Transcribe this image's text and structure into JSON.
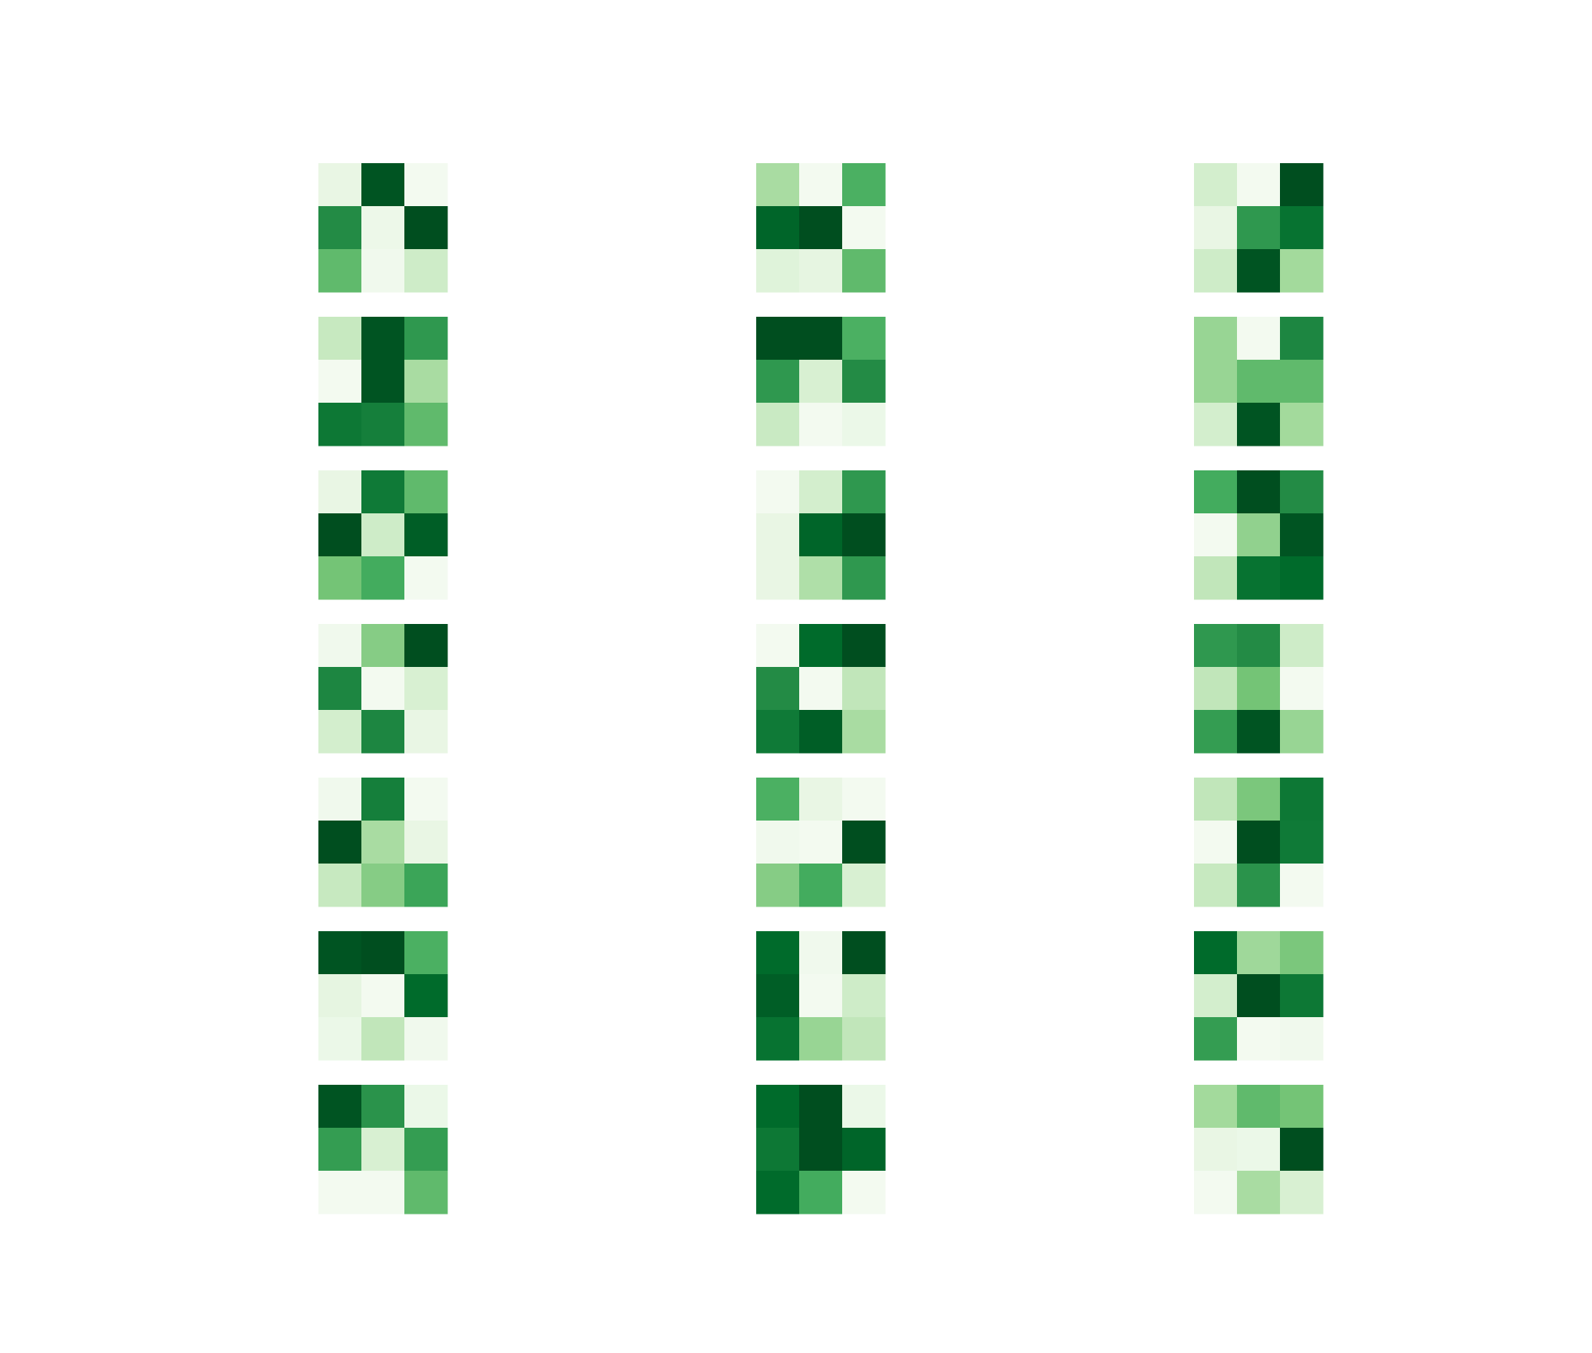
{
  "chart_data": {
    "type": "heatmap",
    "layout": {
      "rows": 7,
      "cols": 3
    },
    "colormap": "Greens",
    "value_range": [
      0,
      1
    ],
    "axes_visible": false,
    "panels": [
      {
        "row": 0,
        "col": 0,
        "values": [
          [
            0.1,
            0.95,
            0.03
          ],
          [
            0.75,
            0.07,
            0.97
          ],
          [
            0.55,
            0.05,
            0.22
          ]
        ]
      },
      {
        "row": 0,
        "col": 1,
        "values": [
          [
            0.35,
            0.03,
            0.6
          ],
          [
            0.9,
            0.97,
            0.03
          ],
          [
            0.15,
            0.12,
            0.55
          ]
        ]
      },
      {
        "row": 0,
        "col": 2,
        "values": [
          [
            0.2,
            0.03,
            0.97
          ],
          [
            0.1,
            0.7,
            0.85
          ],
          [
            0.22,
            0.95,
            0.37
          ]
        ]
      },
      {
        "row": 1,
        "col": 0,
        "values": [
          [
            0.25,
            0.95,
            0.7
          ],
          [
            0.03,
            0.95,
            0.35
          ],
          [
            0.83,
            0.8,
            0.55
          ]
        ]
      },
      {
        "row": 1,
        "col": 1,
        "values": [
          [
            0.97,
            0.97,
            0.6
          ],
          [
            0.7,
            0.18,
            0.75
          ],
          [
            0.24,
            0.03,
            0.08
          ]
        ]
      },
      {
        "row": 1,
        "col": 2,
        "values": [
          [
            0.4,
            0.03,
            0.77
          ],
          [
            0.4,
            0.55,
            0.55
          ],
          [
            0.2,
            0.95,
            0.37
          ]
        ]
      },
      {
        "row": 2,
        "col": 0,
        "values": [
          [
            0.1,
            0.82,
            0.55
          ],
          [
            0.97,
            0.22,
            0.92
          ],
          [
            0.5,
            0.62,
            0.03
          ]
        ]
      },
      {
        "row": 2,
        "col": 1,
        "values": [
          [
            0.03,
            0.2,
            0.7
          ],
          [
            0.1,
            0.9,
            0.97
          ],
          [
            0.1,
            0.33,
            0.7
          ]
        ]
      },
      {
        "row": 2,
        "col": 2,
        "values": [
          [
            0.62,
            0.97,
            0.75
          ],
          [
            0.03,
            0.42,
            0.95
          ],
          [
            0.27,
            0.85,
            0.88
          ]
        ]
      },
      {
        "row": 3,
        "col": 0,
        "values": [
          [
            0.05,
            0.45,
            0.97
          ],
          [
            0.77,
            0.03,
            0.18
          ],
          [
            0.2,
            0.77,
            0.1
          ]
        ]
      },
      {
        "row": 3,
        "col": 1,
        "values": [
          [
            0.03,
            0.88,
            0.97
          ],
          [
            0.75,
            0.03,
            0.27
          ],
          [
            0.82,
            0.92,
            0.35
          ]
        ]
      },
      {
        "row": 3,
        "col": 2,
        "values": [
          [
            0.7,
            0.75,
            0.22
          ],
          [
            0.27,
            0.5,
            0.03
          ],
          [
            0.68,
            0.95,
            0.4
          ]
        ]
      },
      {
        "row": 4,
        "col": 0,
        "values": [
          [
            0.05,
            0.8,
            0.03
          ],
          [
            0.97,
            0.35,
            0.1
          ],
          [
            0.25,
            0.45,
            0.65
          ]
        ]
      },
      {
        "row": 4,
        "col": 1,
        "values": [
          [
            0.6,
            0.1,
            0.03
          ],
          [
            0.05,
            0.03,
            0.97
          ],
          [
            0.45,
            0.62,
            0.18
          ]
        ]
      },
      {
        "row": 4,
        "col": 2,
        "values": [
          [
            0.27,
            0.48,
            0.83
          ],
          [
            0.03,
            0.97,
            0.82
          ],
          [
            0.25,
            0.72,
            0.03
          ]
        ]
      },
      {
        "row": 5,
        "col": 0,
        "values": [
          [
            0.95,
            0.97,
            0.6
          ],
          [
            0.12,
            0.03,
            0.88
          ],
          [
            0.08,
            0.27,
            0.05
          ]
        ]
      },
      {
        "row": 5,
        "col": 1,
        "values": [
          [
            0.88,
            0.05,
            0.97
          ],
          [
            0.92,
            0.03,
            0.22
          ],
          [
            0.85,
            0.4,
            0.27
          ]
        ]
      },
      {
        "row": 5,
        "col": 2,
        "values": [
          [
            0.88,
            0.38,
            0.48
          ],
          [
            0.2,
            0.97,
            0.83
          ],
          [
            0.68,
            0.03,
            0.05
          ]
        ]
      },
      {
        "row": 6,
        "col": 0,
        "values": [
          [
            0.95,
            0.72,
            0.08
          ],
          [
            0.68,
            0.18,
            0.68
          ],
          [
            0.03,
            0.03,
            0.55
          ]
        ]
      },
      {
        "row": 6,
        "col": 1,
        "values": [
          [
            0.88,
            0.97,
            0.08
          ],
          [
            0.83,
            0.97,
            0.9
          ],
          [
            0.88,
            0.62,
            0.03
          ]
        ]
      },
      {
        "row": 6,
        "col": 2,
        "values": [
          [
            0.37,
            0.55,
            0.5
          ],
          [
            0.1,
            0.08,
            0.97
          ],
          [
            0.03,
            0.35,
            0.18
          ]
        ]
      }
    ]
  }
}
